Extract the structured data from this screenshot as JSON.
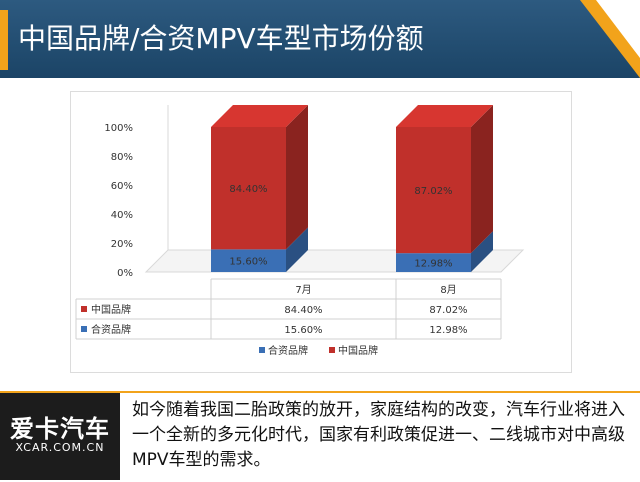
{
  "header": {
    "title": "中国品牌/合资MPV车型市场份额"
  },
  "colors": {
    "header_bg": "#1e4a6e",
    "accent": "#f2a31b",
    "china": "#c0302b",
    "jv": "#3a6fb5"
  },
  "chart_data": {
    "type": "bar",
    "stacked": true,
    "three_d": true,
    "categories": [
      "7月",
      "8月"
    ],
    "series": [
      {
        "name": "合资品牌",
        "values": [
          15.6,
          12.98
        ],
        "labels": [
          "15.60%",
          "12.98%"
        ],
        "color": "#3a6fb5"
      },
      {
        "name": "中国品牌",
        "values": [
          84.4,
          87.02
        ],
        "labels": [
          "84.40%",
          "87.02%"
        ],
        "color": "#c0302b"
      }
    ],
    "y_ticks": [
      "0%",
      "20%",
      "40%",
      "60%",
      "80%",
      "100%"
    ],
    "ylim": [
      0,
      100
    ],
    "table_rows": [
      {
        "name": "中国品牌",
        "color": "#c0302b",
        "values": [
          "84.40%",
          "87.02%"
        ]
      },
      {
        "name": "合资品牌",
        "color": "#3a6fb5",
        "values": [
          "15.60%",
          "12.98%"
        ]
      }
    ],
    "legend": [
      "合资品牌",
      "中国品牌"
    ],
    "legend_position": "bottom",
    "grid": false
  },
  "logo": {
    "cn": "爱卡汽车",
    "en": "XCAR.COM.CN"
  },
  "caption": {
    "text": "如今随着我国二胎政策的放开，家庭结构的改变，汽车行业将进入一个全新的多元化时代，国家有利政策促进一、二线城市对中高级MPV车型的需求。"
  }
}
